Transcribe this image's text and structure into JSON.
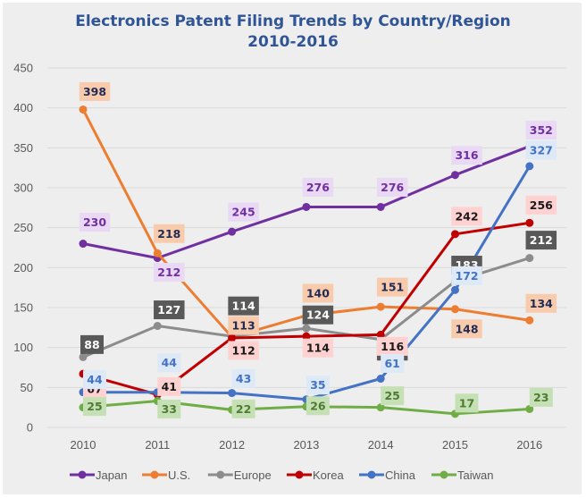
{
  "chart_data": {
    "type": "line",
    "title": "Electronics Patent Filing Trends by Country/Region",
    "subtitle": "2010-2016",
    "xlabel": "",
    "ylabel": "",
    "categories": [
      "2010",
      "2011",
      "2012",
      "2013",
      "2014",
      "2015",
      "2016"
    ],
    "ylim": [
      0,
      450
    ],
    "yticks": [
      0,
      50,
      100,
      150,
      200,
      250,
      300,
      350,
      400,
      450
    ],
    "grid": true,
    "legend_position": "bottom",
    "data_labels": true,
    "series": [
      {
        "name": "Japan",
        "color": "#7030a0",
        "label_bg": "#e9d9f5",
        "label_fg": "#7030a0",
        "values": [
          230,
          212,
          245,
          276,
          276,
          316,
          352
        ]
      },
      {
        "name": "U.S.",
        "color": "#ed7d31",
        "label_bg": "#f8cbad",
        "label_fg": "#1f2a55",
        "values": [
          398,
          218,
          113,
          140,
          151,
          148,
          134
        ]
      },
      {
        "name": "Europe",
        "color": "#8c8c8c",
        "label_bg": "#595959",
        "label_fg": "#ffffff",
        "values": [
          88,
          127,
          114,
          124,
          110,
          183,
          212
        ]
      },
      {
        "name": "Korea",
        "color": "#c00000",
        "label_bg": "#ffd1d1",
        "label_fg": "#1a1a1a",
        "values": [
          67,
          41,
          112,
          114,
          116,
          242,
          256
        ]
      },
      {
        "name": "China",
        "color": "#4472c4",
        "label_bg": "#dde9f7",
        "label_fg": "#4472c4",
        "values": [
          44,
          44,
          43,
          35,
          61,
          172,
          327
        ]
      },
      {
        "name": "Taiwan",
        "color": "#70ad47",
        "label_bg": "#c5e0b4",
        "label_fg": "#4f7a32",
        "values": [
          25,
          33,
          22,
          26,
          25,
          17,
          23
        ]
      }
    ]
  }
}
